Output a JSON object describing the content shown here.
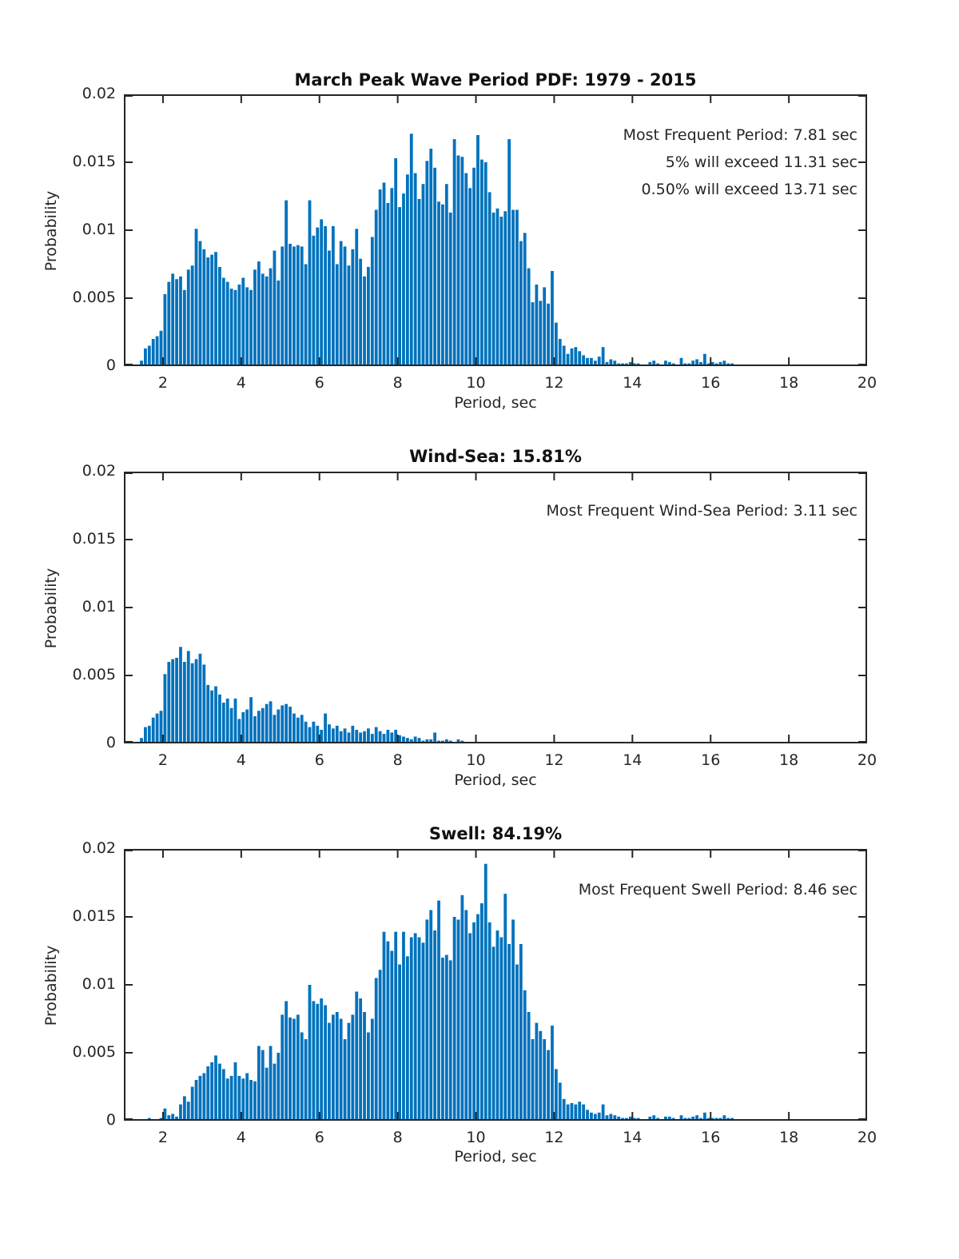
{
  "styles": {
    "bar_color": "#0072BD",
    "axis_color": "#262626",
    "text_color": "#262626",
    "background": "#ffffff"
  },
  "chart_data": [
    {
      "type": "bar",
      "subtype": "histogram-pdf",
      "title": "March Peak Wave Period PDF: 1979 - 2015",
      "xlabel": "Period, sec",
      "ylabel": "Probability",
      "annotations": [
        "Most Frequent Period: 7.81 sec",
        "5% will exceed 11.31 sec",
        "0.50% will exceed 13.71 sec"
      ],
      "xlim": [
        1,
        20
      ],
      "ylim": [
        0,
        0.02
      ],
      "xticks": [
        2,
        4,
        6,
        8,
        10,
        12,
        14,
        16,
        18,
        20
      ],
      "yticks": [
        0,
        0.005,
        0.01,
        0.015,
        0.02
      ],
      "grid": false,
      "legend": null,
      "bin_width": 0.1,
      "first_bin_center": 1.45,
      "value_scale": 0.0001,
      "values": [
        4,
        13,
        15,
        20,
        22,
        26,
        53,
        62,
        68,
        64,
        66,
        56,
        71,
        74,
        101,
        92,
        86,
        80,
        82,
        84,
        73,
        65,
        62,
        57,
        56,
        60,
        65,
        58,
        56,
        71,
        77,
        68,
        66,
        72,
        85,
        63,
        88,
        122,
        90,
        88,
        89,
        88,
        75,
        122,
        96,
        102,
        108,
        103,
        85,
        103,
        75,
        92,
        88,
        74,
        86,
        101,
        79,
        66,
        73,
        95,
        115,
        130,
        135,
        120,
        131,
        153,
        117,
        127,
        141,
        171,
        142,
        123,
        134,
        151,
        160,
        146,
        121,
        119,
        134,
        113,
        167,
        155,
        154,
        142,
        131,
        146,
        170,
        152,
        150,
        128,
        113,
        116,
        110,
        114,
        167,
        115,
        115,
        92,
        98,
        72,
        47,
        60,
        48,
        58,
        46,
        70,
        32,
        20,
        15,
        9,
        13,
        14,
        11,
        8,
        6,
        6,
        4,
        7,
        14,
        3,
        5,
        4,
        2,
        2,
        2,
        3,
        2,
        2,
        1,
        1,
        3,
        4,
        2,
        1,
        4,
        3,
        2,
        1,
        6,
        2,
        2,
        4,
        5,
        3,
        9,
        2,
        3,
        2,
        3,
        4,
        2,
        2
      ]
    },
    {
      "type": "bar",
      "subtype": "histogram-pdf",
      "title": "Wind-Sea: 15.81%",
      "xlabel": "Period, sec",
      "ylabel": "Probability",
      "annotations": [
        "Most Frequent Wind-Sea Period: 3.11 sec"
      ],
      "xlim": [
        1,
        20
      ],
      "ylim": [
        0,
        0.02
      ],
      "xticks": [
        2,
        4,
        6,
        8,
        10,
        12,
        14,
        16,
        18,
        20
      ],
      "yticks": [
        0,
        0.005,
        0.01,
        0.015,
        0.02
      ],
      "grid": false,
      "legend": null,
      "bin_width": 0.1,
      "first_bin_center": 1.45,
      "value_scale": 0.0001,
      "values": [
        4,
        12,
        13,
        19,
        22,
        24,
        51,
        60,
        62,
        63,
        71,
        60,
        68,
        59,
        62,
        66,
        58,
        43,
        39,
        42,
        36,
        30,
        33,
        26,
        33,
        18,
        23,
        25,
        34,
        20,
        24,
        26,
        29,
        31,
        21,
        25,
        28,
        29,
        27,
        22,
        19,
        21,
        16,
        12,
        16,
        13,
        10,
        22,
        14,
        11,
        13,
        9,
        11,
        8,
        13,
        10,
        8,
        9,
        11,
        7,
        12,
        9,
        7,
        10,
        8,
        10,
        6,
        5,
        4,
        3,
        5,
        4,
        2,
        3,
        3,
        8,
        2,
        2,
        3,
        2,
        1,
        3,
        2
      ]
    },
    {
      "type": "bar",
      "subtype": "histogram-pdf",
      "title": "Swell: 84.19%",
      "xlabel": "Period, sec",
      "ylabel": "Probability",
      "annotations": [
        "Most Frequent Swell Period: 8.46 sec"
      ],
      "xlim": [
        1,
        20
      ],
      "ylim": [
        0,
        0.02
      ],
      "xticks": [
        2,
        4,
        6,
        8,
        10,
        12,
        14,
        16,
        18,
        20
      ],
      "yticks": [
        0,
        0.005,
        0.01,
        0.015,
        0.02
      ],
      "grid": false,
      "legend": null,
      "bin_width": 0.1,
      "first_bin_center": 1.55,
      "value_scale": 0.0001,
      "values": [
        1,
        2,
        1,
        0,
        2,
        9,
        4,
        5,
        3,
        12,
        18,
        14,
        25,
        30,
        33,
        35,
        40,
        43,
        48,
        42,
        38,
        31,
        33,
        43,
        33,
        31,
        35,
        30,
        29,
        55,
        52,
        39,
        55,
        42,
        50,
        78,
        88,
        76,
        75,
        78,
        65,
        60,
        100,
        88,
        86,
        90,
        85,
        72,
        78,
        80,
        75,
        60,
        72,
        78,
        95,
        90,
        80,
        65,
        75,
        105,
        111,
        139,
        132,
        125,
        139,
        115,
        139,
        121,
        135,
        138,
        135,
        131,
        148,
        155,
        140,
        162,
        120,
        122,
        118,
        150,
        148,
        166,
        155,
        138,
        146,
        152,
        160,
        189,
        146,
        128,
        140,
        135,
        167,
        130,
        148,
        115,
        130,
        96,
        80,
        60,
        72,
        66,
        60,
        52,
        70,
        38,
        28,
        16,
        12,
        13,
        12,
        14,
        12,
        8,
        6,
        5,
        6,
        12,
        4,
        5,
        4,
        3,
        2,
        2,
        3,
        2,
        2,
        1,
        1,
        3,
        4,
        2,
        1,
        3,
        3,
        2,
        1,
        4,
        2,
        2,
        3,
        4,
        2,
        6,
        2,
        2,
        2,
        2,
        4,
        2,
        2
      ]
    }
  ]
}
